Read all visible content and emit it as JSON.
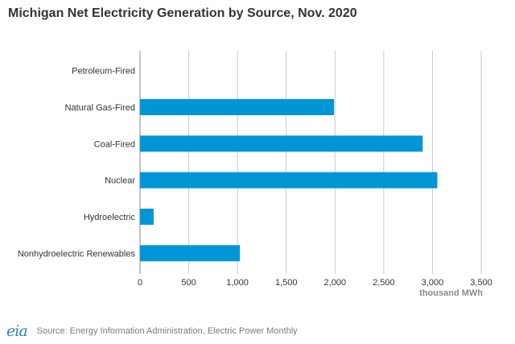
{
  "chart_data": {
    "type": "bar",
    "orientation": "horizontal",
    "title": "Michigan Net Electricity Generation by Source, Nov. 2020",
    "categories": [
      "Petroleum-Fired",
      "Natural Gas-Fired",
      "Coal-Fired",
      "Nuclear",
      "Hydroelectric",
      "Nonhydroelectric Renewables"
    ],
    "values": [
      0,
      1990,
      2900,
      3050,
      140,
      1025
    ],
    "xlim": [
      0,
      3500
    ],
    "xticks": [
      "0",
      "500",
      "1,000",
      "1,500",
      "2,000",
      "2,500",
      "3,000",
      "3,500"
    ],
    "xlabel": "thousand MWh",
    "ylabel": "",
    "grid": "vertical",
    "bar_color": "#0096d6"
  },
  "footer": {
    "logo_text": "eia",
    "source": "Source: Energy Information Administration, Electric Power Monthly"
  },
  "colors": {
    "bar": "#0096d6",
    "grid": "#c8c8c8",
    "axis": "#888888"
  }
}
